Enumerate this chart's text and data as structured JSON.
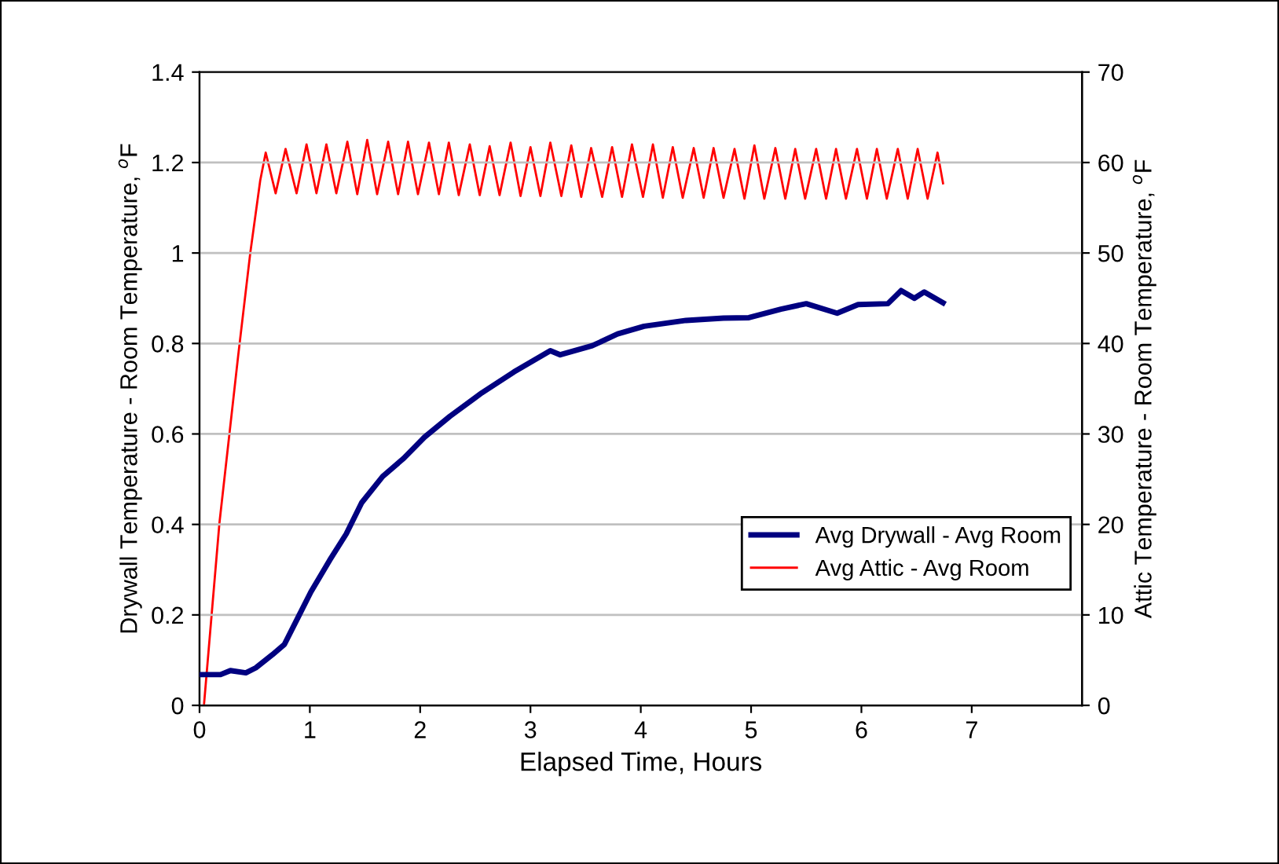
{
  "chart_data": {
    "type": "line",
    "xlabel": "Elapsed Time, Hours",
    "ylabel": "Drywall Temperature - Room Temperature, $^{o}$F",
    "y2label": "Attic Temperature - Room Temperature, $^{o}$F",
    "xlim": [
      0,
      8
    ],
    "xticks": [
      0,
      1,
      2,
      3,
      4,
      5,
      6,
      7
    ],
    "ylim": [
      0,
      1.4
    ],
    "yticks": [
      0,
      0.2,
      0.4,
      0.6,
      0.8,
      1,
      1.2,
      1.4
    ],
    "y2lim": [
      0,
      70
    ],
    "y2ticks": [
      0,
      10,
      20,
      30,
      40,
      50,
      60,
      70
    ],
    "grid": "y",
    "legend": "right",
    "marker": "none",
    "line_style": "solid",
    "series": [
      {
        "name": "Avg Drywall - Avg Room",
        "color": "#000080",
        "x": [
          0,
          0.19,
          0.28,
          0.42,
          0.51,
          0.66,
          0.77,
          0.89,
          1.01,
          1.18,
          1.33,
          1.47,
          1.66,
          1.85,
          2.04,
          2.27,
          2.56,
          2.85,
          3.18,
          3.27,
          3.56,
          3.79,
          4.03,
          4.41,
          4.75,
          4.98,
          5.27,
          5.5,
          5.78,
          5.97,
          6.24,
          6.36,
          6.48,
          6.57,
          6.74
        ],
        "values": [
          0.068,
          0.068,
          0.077,
          0.072,
          0.083,
          0.112,
          0.135,
          0.193,
          0.251,
          0.321,
          0.379,
          0.448,
          0.506,
          0.546,
          0.593,
          0.639,
          0.691,
          0.737,
          0.784,
          0.775,
          0.795,
          0.821,
          0.838,
          0.851,
          0.856,
          0.857,
          0.876,
          0.888,
          0.867,
          0.886,
          0.888,
          0.917,
          0.9,
          0.914,
          0.89
        ]
      },
      {
        "name": "Avg Attic - Avg Room",
        "color": "#ff0000",
        "axis": "y2",
        "x": [
          0.04,
          0.18,
          0.35,
          0.46,
          0.55,
          0.6,
          0.69,
          0.78,
          0.88,
          0.97,
          1.06,
          1.15,
          1.24,
          1.34,
          1.43,
          1.52,
          1.61,
          1.71,
          1.8,
          1.89,
          1.98,
          2.08,
          2.17,
          2.26,
          2.35,
          2.45,
          2.54,
          2.63,
          2.72,
          2.82,
          2.91,
          3.0,
          3.09,
          3.18,
          3.28,
          3.37,
          3.46,
          3.55,
          3.65,
          3.74,
          3.83,
          3.92,
          4.02,
          4.11,
          4.2,
          4.29,
          4.38,
          4.48,
          4.57,
          4.66,
          4.75,
          4.85,
          4.94,
          5.03,
          5.12,
          5.22,
          5.31,
          5.4,
          5.49,
          5.59,
          5.68,
          5.77,
          5.86,
          5.96,
          6.05,
          6.14,
          6.23,
          6.33,
          6.42,
          6.51,
          6.6,
          6.69,
          6.74
        ],
        "values": [
          0,
          20.1,
          38.6,
          50,
          58,
          61.1,
          56.6,
          61.5,
          56.6,
          62.0,
          56.6,
          62.0,
          56.6,
          62.3,
          56.5,
          62.5,
          56.5,
          62.3,
          56.5,
          62.3,
          56.5,
          62.2,
          56.5,
          62.2,
          56.4,
          62.0,
          56.4,
          61.8,
          56.4,
          62.2,
          56.3,
          61.7,
          56.3,
          62.2,
          56.3,
          61.9,
          56.2,
          61.6,
          56.2,
          61.7,
          56.2,
          62.0,
          56.2,
          62.0,
          56.1,
          61.7,
          56.1,
          61.6,
          56.1,
          61.6,
          56.1,
          61.5,
          56.0,
          61.9,
          56.0,
          61.6,
          56.0,
          61.5,
          56.0,
          61.5,
          56.0,
          61.5,
          56.0,
          61.5,
          56.0,
          61.5,
          56.0,
          61.5,
          56.0,
          61.5,
          56.0,
          61.1,
          57.7
        ]
      }
    ]
  }
}
